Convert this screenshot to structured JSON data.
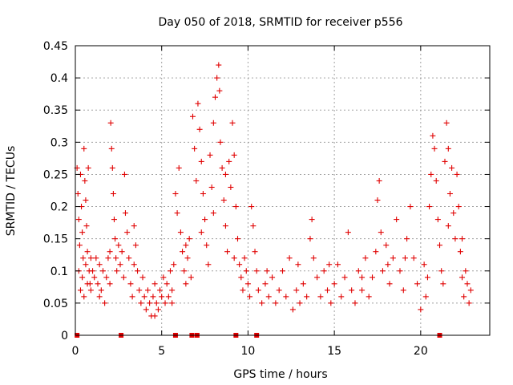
{
  "chart_data": {
    "type": "scatter",
    "title": "Day 050 of 2018, SRMTID for receiver p556",
    "xlabel": "GPS time / hours",
    "ylabel": "SRMTID / TECUs",
    "xlim": [
      0,
      24
    ],
    "ylim": [
      0,
      0.45
    ],
    "xticks": [
      0,
      5,
      10,
      15,
      20
    ],
    "yticks": [
      0,
      0.05,
      0.1,
      0.15,
      0.2,
      0.25,
      0.3,
      0.35,
      0.4,
      0.45
    ],
    "xtick_labels": [
      "0",
      "5",
      "10",
      "15",
      "20"
    ],
    "ytick_labels": [
      "0",
      "0.05",
      "0.1",
      "0.15",
      "0.2",
      "0.25",
      "0.3",
      "0.35",
      "0.4",
      "0.45"
    ],
    "grid": true,
    "marker": "+",
    "color": "#e00000",
    "series": [
      {
        "name": "SRMTID",
        "points": [
          [
            0.1,
            0.26
          ],
          [
            0.15,
            0.22
          ],
          [
            0.2,
            0.18
          ],
          [
            0.25,
            0.14
          ],
          [
            0.3,
            0.25
          ],
          [
            0.35,
            0.2
          ],
          [
            0.4,
            0.16
          ],
          [
            0.45,
            0.12
          ],
          [
            0.5,
            0.29
          ],
          [
            0.55,
            0.24
          ],
          [
            0.6,
            0.21
          ],
          [
            0.65,
            0.17
          ],
          [
            0.7,
            0.13
          ],
          [
            0.75,
            0.26
          ],
          [
            0.8,
            0.1
          ],
          [
            0.85,
            0.08
          ],
          [
            0.2,
            0.1
          ],
          [
            0.3,
            0.07
          ],
          [
            0.4,
            0.09
          ],
          [
            0.5,
            0.06
          ],
          [
            0.6,
            0.11
          ],
          [
            0.7,
            0.08
          ],
          [
            0.9,
            0.07
          ],
          [
            1.0,
            0.1
          ],
          [
            1.1,
            0.09
          ],
          [
            1.2,
            0.12
          ],
          [
            1.3,
            0.08
          ],
          [
            1.4,
            0.11
          ],
          [
            1.5,
            0.07
          ],
          [
            1.6,
            0.1
          ],
          [
            1.7,
            0.05
          ],
          [
            1.8,
            0.09
          ],
          [
            1.9,
            0.12
          ],
          [
            2.0,
            0.08
          ],
          [
            2.05,
            0.33
          ],
          [
            2.1,
            0.29
          ],
          [
            2.15,
            0.26
          ],
          [
            2.2,
            0.22
          ],
          [
            2.25,
            0.18
          ],
          [
            2.3,
            0.15
          ],
          [
            2.35,
            0.12
          ],
          [
            2.4,
            0.1
          ],
          [
            2.5,
            0.14
          ],
          [
            2.6,
            0.11
          ],
          [
            2.7,
            0.13
          ],
          [
            2.8,
            0.09
          ],
          [
            2.85,
            0.25
          ],
          [
            2.9,
            0.19
          ],
          [
            3.0,
            0.16
          ],
          [
            3.1,
            0.12
          ],
          [
            3.2,
            0.08
          ],
          [
            3.3,
            0.06
          ],
          [
            3.4,
            0.17
          ],
          [
            3.5,
            0.14
          ],
          [
            3.6,
            0.1
          ],
          [
            3.7,
            0.07
          ],
          [
            3.8,
            0.05
          ],
          [
            3.9,
            0.09
          ],
          [
            4.0,
            0.06
          ],
          [
            4.1,
            0.04
          ],
          [
            4.2,
            0.07
          ],
          [
            4.3,
            0.05
          ],
          [
            4.4,
            0.03
          ],
          [
            4.5,
            0.06
          ],
          [
            4.6,
            0.08
          ],
          [
            4.7,
            0.05
          ],
          [
            4.8,
            0.04
          ],
          [
            4.9,
            0.07
          ],
          [
            5.0,
            0.06
          ],
          [
            5.1,
            0.09
          ],
          [
            5.2,
            0.05
          ],
          [
            5.3,
            0.08
          ],
          [
            5.4,
            0.06
          ],
          [
            5.5,
            0.1
          ],
          [
            5.6,
            0.07
          ],
          [
            5.7,
            0.11
          ],
          [
            5.8,
            0.22
          ],
          [
            5.9,
            0.19
          ],
          [
            6.0,
            0.26
          ],
          [
            6.1,
            0.16
          ],
          [
            6.2,
            0.13
          ],
          [
            6.3,
            0.1
          ],
          [
            6.4,
            0.08
          ],
          [
            6.5,
            0.12
          ],
          [
            6.6,
            0.15
          ],
          [
            6.7,
            0.09
          ],
          [
            6.8,
            0.34
          ],
          [
            6.9,
            0.29
          ],
          [
            7.0,
            0.24
          ],
          [
            7.1,
            0.36
          ],
          [
            7.2,
            0.32
          ],
          [
            7.3,
            0.27
          ],
          [
            7.4,
            0.22
          ],
          [
            7.5,
            0.18
          ],
          [
            7.6,
            0.14
          ],
          [
            7.7,
            0.11
          ],
          [
            7.8,
            0.28
          ],
          [
            7.9,
            0.23
          ],
          [
            8.0,
            0.33
          ],
          [
            8.1,
            0.37
          ],
          [
            8.2,
            0.4
          ],
          [
            8.3,
            0.42
          ],
          [
            8.35,
            0.38
          ],
          [
            8.4,
            0.3
          ],
          [
            8.5,
            0.26
          ],
          [
            8.6,
            0.21
          ],
          [
            8.7,
            0.17
          ],
          [
            8.8,
            0.13
          ],
          [
            8.9,
            0.27
          ],
          [
            9.0,
            0.23
          ],
          [
            9.1,
            0.33
          ],
          [
            9.2,
            0.28
          ],
          [
            9.3,
            0.2
          ],
          [
            9.4,
            0.15
          ],
          [
            9.5,
            0.11
          ],
          [
            9.6,
            0.09
          ],
          [
            9.7,
            0.07
          ],
          [
            9.8,
            0.12
          ],
          [
            9.9,
            0.1
          ],
          [
            10.0,
            0.08
          ],
          [
            10.1,
            0.06
          ],
          [
            10.2,
            0.2
          ],
          [
            10.3,
            0.17
          ],
          [
            10.4,
            0.13
          ],
          [
            10.5,
            0.1
          ],
          [
            10.6,
            0.07
          ],
          [
            10.8,
            0.05
          ],
          [
            11.0,
            0.08
          ],
          [
            11.2,
            0.06
          ],
          [
            11.4,
            0.09
          ],
          [
            11.6,
            0.05
          ],
          [
            11.8,
            0.07
          ],
          [
            12.0,
            0.1
          ],
          [
            12.2,
            0.06
          ],
          [
            12.4,
            0.12
          ],
          [
            12.6,
            0.04
          ],
          [
            12.8,
            0.07
          ],
          [
            13.0,
            0.05
          ],
          [
            13.2,
            0.08
          ],
          [
            13.4,
            0.06
          ],
          [
            13.6,
            0.15
          ],
          [
            13.7,
            0.18
          ],
          [
            13.8,
            0.12
          ],
          [
            14.0,
            0.09
          ],
          [
            14.2,
            0.06
          ],
          [
            14.4,
            0.1
          ],
          [
            14.6,
            0.07
          ],
          [
            14.8,
            0.05
          ],
          [
            15.0,
            0.08
          ],
          [
            15.2,
            0.11
          ],
          [
            15.4,
            0.06
          ],
          [
            15.6,
            0.09
          ],
          [
            15.8,
            0.16
          ],
          [
            16.0,
            0.07
          ],
          [
            16.2,
            0.05
          ],
          [
            16.4,
            0.1
          ],
          [
            16.6,
            0.07
          ],
          [
            16.8,
            0.12
          ],
          [
            17.0,
            0.06
          ],
          [
            17.2,
            0.09
          ],
          [
            17.4,
            0.13
          ],
          [
            17.5,
            0.21
          ],
          [
            17.6,
            0.24
          ],
          [
            17.7,
            0.16
          ],
          [
            17.8,
            0.1
          ],
          [
            18.0,
            0.14
          ],
          [
            18.2,
            0.08
          ],
          [
            18.4,
            0.12
          ],
          [
            18.6,
            0.18
          ],
          [
            18.8,
            0.1
          ],
          [
            19.0,
            0.07
          ],
          [
            19.2,
            0.15
          ],
          [
            19.4,
            0.2
          ],
          [
            19.6,
            0.12
          ],
          [
            19.8,
            0.08
          ],
          [
            20.0,
            0.04
          ],
          [
            20.2,
            0.11
          ],
          [
            20.4,
            0.09
          ],
          [
            20.5,
            0.2
          ],
          [
            20.6,
            0.25
          ],
          [
            20.7,
            0.31
          ],
          [
            20.8,
            0.29
          ],
          [
            20.9,
            0.24
          ],
          [
            21.0,
            0.18
          ],
          [
            21.1,
            0.14
          ],
          [
            21.2,
            0.1
          ],
          [
            21.3,
            0.08
          ],
          [
            21.4,
            0.27
          ],
          [
            21.5,
            0.33
          ],
          [
            21.6,
            0.29
          ],
          [
            21.7,
            0.22
          ],
          [
            21.8,
            0.26
          ],
          [
            21.9,
            0.19
          ],
          [
            22.0,
            0.15
          ],
          [
            22.1,
            0.25
          ],
          [
            22.2,
            0.2
          ],
          [
            22.3,
            0.13
          ],
          [
            22.4,
            0.09
          ],
          [
            22.5,
            0.06
          ],
          [
            22.6,
            0.1
          ],
          [
            22.7,
            0.08
          ],
          [
            22.8,
            0.05
          ],
          [
            22.9,
            0.07
          ],
          [
            0.9,
            0.12
          ],
          [
            1.4,
            0.06
          ],
          [
            2.0,
            0.13
          ],
          [
            3.4,
            0.11
          ],
          [
            4.6,
            0.03
          ],
          [
            5.6,
            0.05
          ],
          [
            6.4,
            0.14
          ],
          [
            7.3,
            0.16
          ],
          [
            8.0,
            0.19
          ],
          [
            8.7,
            0.25
          ],
          [
            9.2,
            0.12
          ],
          [
            11.1,
            0.1
          ],
          [
            12.9,
            0.11
          ],
          [
            14.7,
            0.11
          ],
          [
            16.6,
            0.09
          ],
          [
            18.1,
            0.11
          ],
          [
            19.1,
            0.12
          ],
          [
            20.3,
            0.06
          ],
          [
            21.6,
            0.17
          ],
          [
            22.4,
            0.15
          ]
        ]
      }
    ],
    "gap_markers_x": [
      0.1,
      2.65,
      5.8,
      6.75,
      7.05,
      9.3,
      10.5,
      21.1
    ]
  }
}
